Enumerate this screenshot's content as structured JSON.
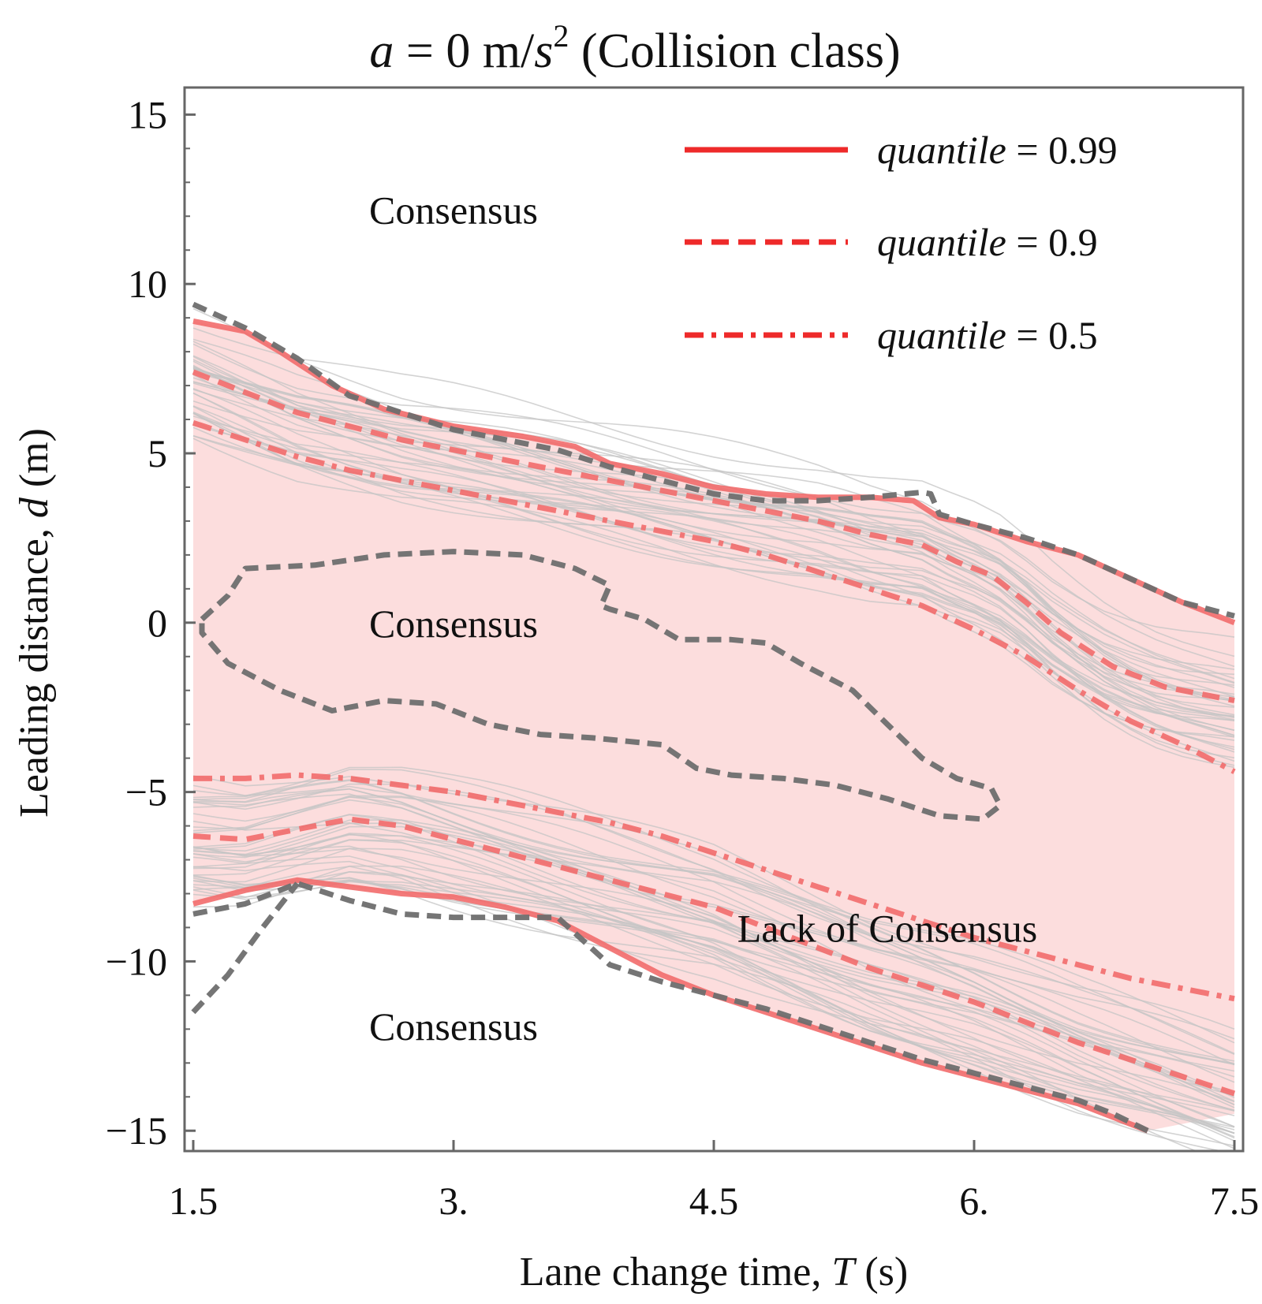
{
  "chart_data": {
    "type": "line",
    "title": {
      "var": "a",
      "eq": " = 0 m/",
      "unit_var": "s",
      "sup": "2",
      "suffix": "  (Collision class)"
    },
    "xlabel": {
      "text": "Lane change time,  ",
      "var": "T",
      "unit": " (s)"
    },
    "ylabel": {
      "text": "Leading distance,  ",
      "var": "d",
      "unit": " (m)"
    },
    "xlim": [
      1.45,
      7.55
    ],
    "ylim": [
      -15.6,
      15.8
    ],
    "x_ticks": [
      1.5,
      3.0,
      4.5,
      6.0,
      7.5
    ],
    "x_tick_labels": [
      "1.5",
      "3.",
      "4.5",
      "6.",
      "7.5"
    ],
    "y_ticks": [
      15,
      10,
      5,
      0,
      -5,
      -10,
      -15
    ],
    "y_tick_labels": [
      "15",
      "10",
      "5",
      "0",
      "−10",
      "−15"
    ],
    "y_tick_labels_full": [
      "15",
      "10",
      "5",
      "0",
      "−5",
      "−10",
      "−15"
    ],
    "grid": false,
    "legend_position": "top-right",
    "legend": [
      {
        "var": "quantile",
        "text": " = 0.99",
        "style": "solid"
      },
      {
        "var": "quantile",
        "text": " = 0.9",
        "style": "dashed"
      },
      {
        "var": "quantile",
        "text": " = 0.5",
        "style": "dashdot"
      }
    ],
    "region_labels": [
      {
        "text": "Consensus",
        "x": 3.0,
        "y": 12.2
      },
      {
        "text": "Consensus",
        "x": 3.0,
        "y": 0.0
      },
      {
        "text": "Lack of Consensus",
        "x": 5.5,
        "y": -9.0
      },
      {
        "text": "Consensus",
        "x": 3.0,
        "y": -11.9
      }
    ],
    "colors": {
      "quantile_line": "#f26b6b",
      "consensus_boundary": "#6e6e6e",
      "trajectories": "#c4c4c4",
      "band_fill": "#fcd7d7"
    },
    "series": [
      {
        "name": "quantile = 0.99 (upper)",
        "style": "solid",
        "x": [
          1.5,
          1.8,
          2.0,
          2.3,
          2.6,
          3.0,
          3.4,
          3.7,
          3.9,
          4.2,
          4.5,
          4.8,
          5.1,
          5.4,
          5.65,
          5.8,
          6.0,
          6.3,
          6.6,
          6.9,
          7.2,
          7.5
        ],
        "y": [
          8.9,
          8.6,
          8.0,
          7.0,
          6.3,
          5.8,
          5.5,
          5.2,
          4.7,
          4.4,
          4.0,
          3.8,
          3.7,
          3.7,
          3.6,
          3.1,
          2.9,
          2.4,
          2.0,
          1.3,
          0.6,
          0.0
        ]
      },
      {
        "name": "quantile = 0.99 (lower)",
        "style": "solid",
        "x": [
          1.5,
          1.8,
          2.1,
          2.4,
          2.7,
          3.0,
          3.3,
          3.6,
          3.9,
          4.2,
          4.5,
          4.8,
          5.1,
          5.4,
          5.7,
          6.0,
          6.3,
          6.6,
          6.8,
          7.0
        ],
        "y": [
          -8.3,
          -7.9,
          -7.6,
          -7.8,
          -8.0,
          -8.1,
          -8.4,
          -8.8,
          -9.6,
          -10.4,
          -11.0,
          -11.5,
          -12.0,
          -12.5,
          -13.0,
          -13.4,
          -13.8,
          -14.2,
          -14.6,
          -15.0
        ]
      },
      {
        "name": "quantile = 0.9 (upper)",
        "style": "dashed",
        "x": [
          1.5,
          1.8,
          2.1,
          2.4,
          2.7,
          3.0,
          3.3,
          3.6,
          3.9,
          4.2,
          4.5,
          4.8,
          5.1,
          5.4,
          5.7,
          5.9,
          6.1,
          6.3,
          6.5,
          6.8,
          7.1,
          7.5
        ],
        "y": [
          7.4,
          6.8,
          6.2,
          5.8,
          5.4,
          5.1,
          4.8,
          4.5,
          4.2,
          3.9,
          3.6,
          3.3,
          3.0,
          2.6,
          2.3,
          1.8,
          1.4,
          0.6,
          -0.3,
          -1.3,
          -1.9,
          -2.3
        ]
      },
      {
        "name": "quantile = 0.9 (lower)",
        "style": "dashed",
        "x": [
          1.5,
          1.8,
          2.1,
          2.4,
          2.7,
          3.0,
          3.3,
          3.6,
          3.9,
          4.2,
          4.5,
          4.8,
          5.1,
          5.4,
          5.7,
          6.0,
          6.3,
          6.6,
          6.9,
          7.2,
          7.5
        ],
        "y": [
          -6.3,
          -6.4,
          -6.1,
          -5.8,
          -6.0,
          -6.4,
          -6.8,
          -7.2,
          -7.6,
          -8.0,
          -8.4,
          -9.0,
          -9.6,
          -10.2,
          -10.7,
          -11.2,
          -11.8,
          -12.4,
          -12.9,
          -13.4,
          -13.9
        ]
      },
      {
        "name": "quantile = 0.5 (upper)",
        "style": "dashdot",
        "x": [
          1.5,
          1.8,
          2.1,
          2.4,
          2.7,
          3.0,
          3.3,
          3.6,
          3.9,
          4.2,
          4.5,
          4.8,
          5.1,
          5.4,
          5.7,
          6.0,
          6.3,
          6.6,
          6.9,
          7.2,
          7.5
        ],
        "y": [
          5.9,
          5.4,
          4.9,
          4.5,
          4.2,
          3.9,
          3.6,
          3.3,
          3.0,
          2.7,
          2.4,
          2.0,
          1.5,
          1.0,
          0.5,
          -0.2,
          -1.0,
          -2.0,
          -2.9,
          -3.6,
          -4.4
        ]
      },
      {
        "name": "quantile = 0.5 (lower)",
        "style": "dashdot",
        "x": [
          1.5,
          1.8,
          2.1,
          2.4,
          2.7,
          3.0,
          3.3,
          3.6,
          3.9,
          4.2,
          4.5,
          4.8,
          5.1,
          5.4,
          5.7,
          6.0,
          6.3,
          6.6,
          6.9,
          7.2,
          7.5
        ],
        "y": [
          -4.6,
          -4.6,
          -4.5,
          -4.6,
          -4.8,
          -5.0,
          -5.3,
          -5.6,
          -5.9,
          -6.3,
          -6.8,
          -7.3,
          -7.8,
          -8.3,
          -8.8,
          -9.3,
          -9.7,
          -10.1,
          -10.5,
          -10.8,
          -11.1
        ]
      },
      {
        "name": "consensus boundary (upper)",
        "style": "boundary",
        "x": [
          1.5,
          1.8,
          2.1,
          2.4,
          2.7,
          3.0,
          3.3,
          3.6,
          3.9,
          4.2,
          4.5,
          4.8,
          5.1,
          5.4,
          5.6,
          5.7,
          5.75,
          5.8,
          6.0,
          6.3,
          6.6,
          6.9,
          7.2,
          7.5
        ],
        "y": [
          9.4,
          8.7,
          7.8,
          6.7,
          6.2,
          5.7,
          5.4,
          5.1,
          4.6,
          4.2,
          3.8,
          3.6,
          3.6,
          3.7,
          3.8,
          3.85,
          3.8,
          3.2,
          2.9,
          2.5,
          2.0,
          1.3,
          0.6,
          0.2
        ]
      },
      {
        "name": "consensus boundary (lower)",
        "style": "boundary",
        "x": [
          1.5,
          1.8,
          2.1,
          2.4,
          2.7,
          3.0,
          3.3,
          3.6,
          3.9,
          4.2,
          4.5,
          4.8,
          5.1,
          5.4,
          5.7,
          6.0,
          6.3,
          6.6,
          6.8,
          7.0
        ],
        "y": [
          -8.6,
          -8.3,
          -7.7,
          -8.2,
          -8.6,
          -8.7,
          -8.7,
          -8.7,
          -10.1,
          -10.6,
          -11.0,
          -11.4,
          -11.9,
          -12.4,
          -12.9,
          -13.3,
          -13.7,
          -14.1,
          -14.5,
          -15.0
        ]
      },
      {
        "name": "consensus boundary (left tail)",
        "style": "boundary",
        "x": [
          1.5,
          1.7,
          1.9,
          2.1
        ],
        "y": [
          -11.5,
          -10.4,
          -9.0,
          -7.7
        ]
      },
      {
        "name": "consensus boundary (inner)",
        "style": "boundary",
        "closed": true,
        "x": [
          1.55,
          1.7,
          1.8,
          2.2,
          2.6,
          3.0,
          3.4,
          3.7,
          3.9,
          3.85,
          3.9,
          4.1,
          4.3,
          4.6,
          4.8,
          5.0,
          5.3,
          5.5,
          5.7,
          5.9,
          6.1,
          6.15,
          6.05,
          5.8,
          5.5,
          5.2,
          4.9,
          4.6,
          4.4,
          4.2,
          4.0,
          3.8,
          3.5,
          3.2,
          2.9,
          2.6,
          2.3,
          2.0,
          1.7,
          1.55
        ],
        "y": [
          0.1,
          0.8,
          1.6,
          1.7,
          2.0,
          2.1,
          2.0,
          1.6,
          1.1,
          0.5,
          0.4,
          0.1,
          -0.5,
          -0.5,
          -0.6,
          -1.2,
          -2.0,
          -3.0,
          -4.0,
          -4.6,
          -4.9,
          -5.4,
          -5.8,
          -5.7,
          -5.2,
          -4.8,
          -4.6,
          -4.5,
          -4.3,
          -3.6,
          -3.5,
          -3.4,
          -3.3,
          -3.0,
          -2.4,
          -2.3,
          -2.6,
          -2.0,
          -1.2,
          -0.3
        ]
      }
    ]
  }
}
